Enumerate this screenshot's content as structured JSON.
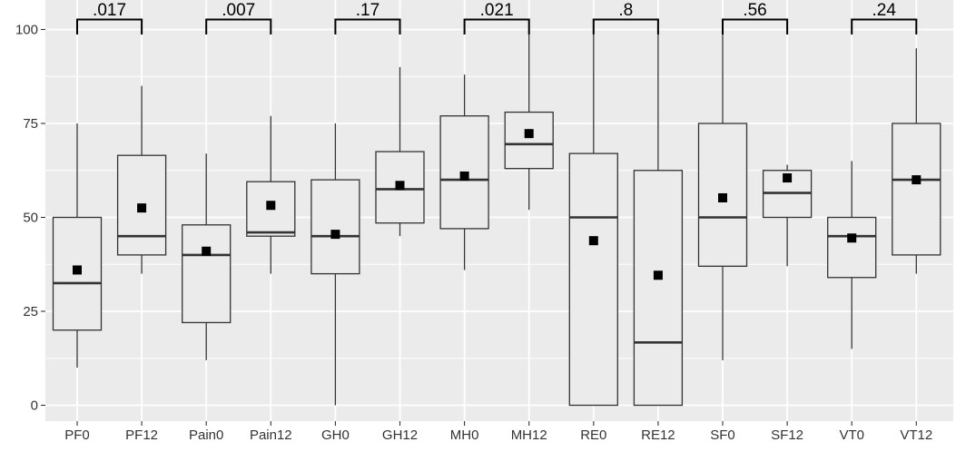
{
  "chart_data": {
    "type": "box",
    "title": "",
    "xlabel": "",
    "ylabel": "",
    "ylim": [
      -5,
      101
    ],
    "y_ticks": [
      0,
      25,
      50,
      75,
      100
    ],
    "y_tick_labels": [
      "0",
      "25",
      "50",
      "75",
      "100"
    ],
    "grid": true,
    "categories": [
      "PF0",
      "PF12",
      "Pain0",
      "Pain12",
      "GH0",
      "GH12",
      "MH0",
      "MH12",
      "RE0",
      "RE12",
      "SF0",
      "SF12",
      "VT0",
      "VT12"
    ],
    "boxes": [
      {
        "category": "PF0",
        "whisker_low": 10,
        "q1": 20,
        "median": 32.5,
        "q3": 50,
        "whisker_high": 75,
        "mean": 36
      },
      {
        "category": "PF12",
        "whisker_low": 35,
        "q1": 40,
        "median": 45,
        "q3": 66.5,
        "whisker_high": 85,
        "mean": 52.5
      },
      {
        "category": "Pain0",
        "whisker_low": 12,
        "q1": 22,
        "median": 40,
        "q3": 48,
        "whisker_high": 67,
        "mean": 41
      },
      {
        "category": "Pain12",
        "whisker_low": 35,
        "q1": 45,
        "median": 46,
        "q3": 59.5,
        "whisker_high": 77,
        "mean": 53.2
      },
      {
        "category": "GH0",
        "whisker_low": 0,
        "q1": 35,
        "median": 45,
        "q3": 60,
        "whisker_high": 75,
        "mean": 45.5
      },
      {
        "category": "GH12",
        "whisker_low": 45,
        "q1": 48.5,
        "median": 57.5,
        "q3": 67.5,
        "whisker_high": 90,
        "mean": 58.5
      },
      {
        "category": "MH0",
        "whisker_low": 36,
        "q1": 47,
        "median": 60,
        "q3": 77,
        "whisker_high": 88,
        "mean": 61
      },
      {
        "category": "MH12",
        "whisker_low": 52,
        "q1": 63,
        "median": 69.5,
        "q3": 78,
        "whisker_high": 100,
        "mean": 72.3
      },
      {
        "category": "RE0",
        "whisker_low": 0,
        "q1": 0,
        "median": 50,
        "q3": 67,
        "whisker_high": 100,
        "mean": 43.8
      },
      {
        "category": "RE12",
        "whisker_low": 0,
        "q1": 0,
        "median": 16.7,
        "q3": 62.5,
        "whisker_high": 100,
        "mean": 34.6
      },
      {
        "category": "SF0",
        "whisker_low": 12,
        "q1": 37,
        "median": 50,
        "q3": 75,
        "whisker_high": 100,
        "mean": 55.2
      },
      {
        "category": "SF12",
        "whisker_low": 37,
        "q1": 50,
        "median": 56.5,
        "q3": 62.5,
        "whisker_high": 64,
        "mean": 60.5
      },
      {
        "category": "VT0",
        "whisker_low": 15,
        "q1": 34,
        "median": 45,
        "q3": 50,
        "whisker_high": 65,
        "mean": 44.5
      },
      {
        "category": "VT12",
        "whisker_low": 35,
        "q1": 40,
        "median": 60,
        "q3": 75,
        "whisker_high": 95,
        "mean": 60
      }
    ],
    "comparisons": [
      {
        "pair": [
          "PF0",
          "PF12"
        ],
        "label": ".017"
      },
      {
        "pair": [
          "Pain0",
          "Pain12"
        ],
        "label": ".007"
      },
      {
        "pair": [
          "GH0",
          "GH12"
        ],
        "label": ".17"
      },
      {
        "pair": [
          "MH0",
          "MH12"
        ],
        "label": ".021"
      },
      {
        "pair": [
          "RE0",
          "RE12"
        ],
        "label": ".8"
      },
      {
        "pair": [
          "SF0",
          "SF12"
        ],
        "label": ".56"
      },
      {
        "pair": [
          "VT0",
          "VT12"
        ],
        "label": ".24"
      }
    ],
    "colors": {
      "panel_background": "#ebebeb",
      "grid": "#ffffff",
      "box_fill": "#ebebeb",
      "box_stroke": "#333333",
      "mean_marker": "#000000",
      "bracket": "#000000"
    }
  }
}
